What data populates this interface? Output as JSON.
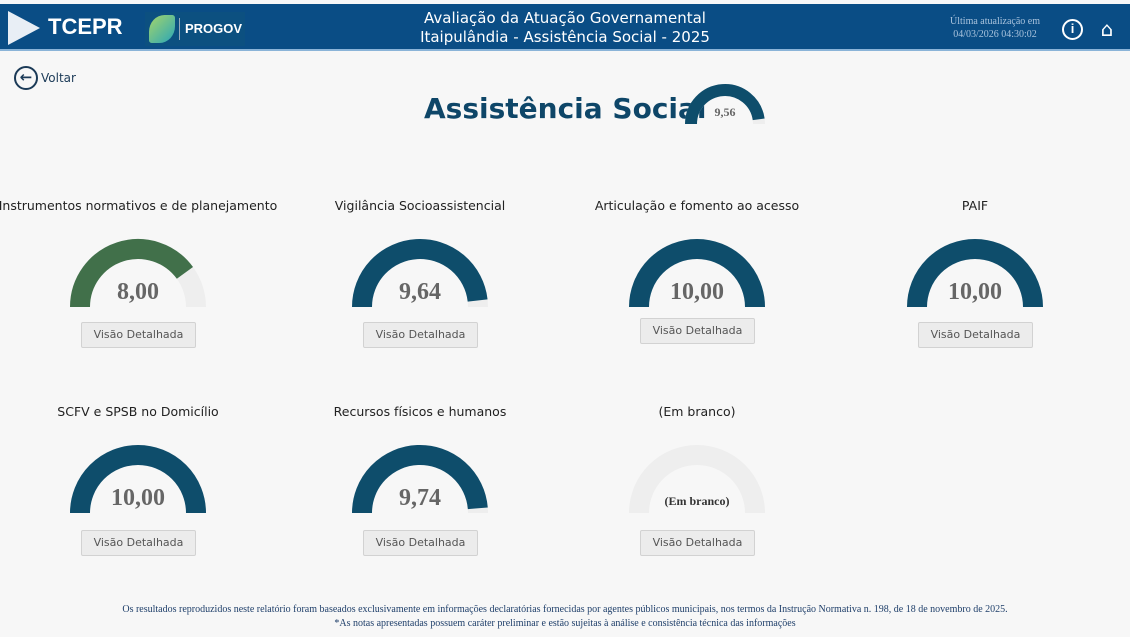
{
  "header": {
    "brand": "TCEPR",
    "partner": "PROGOV",
    "title_line1": "Avaliação da Atuação Governamental",
    "title_line2": "Itaipulândia - Assistência Social - 2025",
    "update_label": "Última atualização em",
    "update_value": "04/03/2026 04:30:02",
    "info_icon": "i",
    "home_icon": "⌂"
  },
  "back": {
    "label": "Voltar"
  },
  "page": {
    "title": "Assistência Social",
    "score": "9,56",
    "score_value": 9.56
  },
  "colors": {
    "primary": "#0e4d6b",
    "green": "#41704a",
    "track": "#eeeeee",
    "header": "#0a4d85"
  },
  "cards": [
    {
      "title": "Instrumentos normativos e de planejamento",
      "score": "8,00",
      "value": 8.0,
      "color": "#41704a",
      "button": "Visão Detalhada"
    },
    {
      "title": "Vigilância Socioassistencial",
      "score": "9,64",
      "value": 9.64,
      "color": "#0e4d6b",
      "button": "Visão Detalhada"
    },
    {
      "title": "Articulação e fomento ao acesso",
      "score": "10,00",
      "value": 10,
      "color": "#0e4d6b",
      "button": "Visão Detalhada"
    },
    {
      "title": "PAIF",
      "score": "10,00",
      "value": 10,
      "color": "#0e4d6b",
      "button": "Visão Detalhada"
    },
    {
      "title": "SCFV e SPSB no Domicílio",
      "score": "10,00",
      "value": 10,
      "color": "#0e4d6b",
      "button": "Visão Detalhada"
    },
    {
      "title": "Recursos físicos e humanos",
      "score": "9,74",
      "value": 9.74,
      "color": "#0e4d6b",
      "button": "Visão Detalhada"
    },
    {
      "title": "(Em branco)",
      "score": "(Em branco)",
      "value": 0,
      "color": "#0e4d6b",
      "button": "Visão Detalhada"
    }
  ],
  "footer": {
    "line1": "Os resultados reproduzidos neste relatório foram baseados exclusivamente em informações declaratórias fornecidas por agentes públicos municipais, nos termos da Instrução Normativa n. 198, de 18 de novembro de 2025.",
    "line2": "*As notas apresentadas possuem caráter preliminar e estão sujeitas à análise e consistência técnica das informações"
  }
}
